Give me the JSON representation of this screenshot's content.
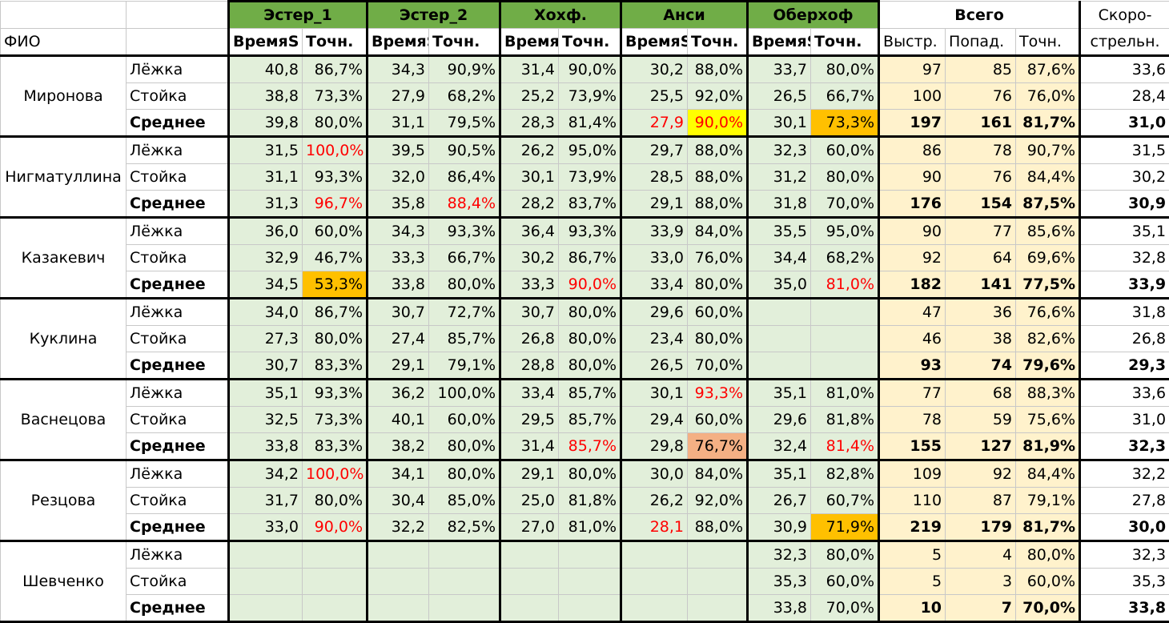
{
  "header": {
    "groups": [
      "Эстер_1",
      "Эстер_2",
      "Хохф.",
      "Анси",
      "Оберхоф"
    ],
    "total_group": "Всего",
    "rate_top": "Скоро-",
    "rate_bottom": "стрельн.",
    "fio": "ФИО",
    "time_label": "ВремяS",
    "acc_label": "Точн.",
    "fast_label": "Выстр.",
    "hits_label": "Попад.",
    "total_acc_label": "Точн."
  },
  "people": [
    {
      "name": "Миронова",
      "rows": [
        {
          "label": "Лёжка",
          "cells": [
            [
              "40,8",
              "86,7%"
            ],
            [
              "34,3",
              "90,9%"
            ],
            [
              "31,4",
              "90,0%"
            ],
            [
              "30,2",
              "88,0%"
            ],
            [
              "33,7",
              "80,0%"
            ]
          ],
          "total": [
            "97",
            "85",
            "87,6%"
          ],
          "rate": "33,6"
        },
        {
          "label": "Стойка",
          "cells": [
            [
              "38,8",
              "73,3%"
            ],
            [
              "27,9",
              "68,2%"
            ],
            [
              "25,2",
              "73,9%"
            ],
            [
              "25,5",
              "92,0%"
            ],
            [
              "26,5",
              "66,7%"
            ]
          ],
          "total": [
            "100",
            "76",
            "76,0%"
          ],
          "rate": "28,4"
        },
        {
          "label": "Среднее",
          "cells": [
            [
              "39,8",
              "80,0%"
            ],
            [
              "31,1",
              "79,5%"
            ],
            [
              "28,3",
              "81,4%"
            ],
            [
              "27,9",
              "90,0%"
            ],
            [
              "30,1",
              "73,3%"
            ]
          ],
          "total": [
            "197",
            "161",
            "81,7%"
          ],
          "rate": "31,0"
        }
      ]
    },
    {
      "name": "Нигматуллина",
      "rows": [
        {
          "label": "Лёжка",
          "cells": [
            [
              "31,5",
              "100,0%"
            ],
            [
              "39,5",
              "90,5%"
            ],
            [
              "26,2",
              "95,0%"
            ],
            [
              "29,7",
              "88,0%"
            ],
            [
              "32,3",
              "60,0%"
            ]
          ],
          "total": [
            "86",
            "78",
            "90,7%"
          ],
          "rate": "31,5"
        },
        {
          "label": "Стойка",
          "cells": [
            [
              "31,1",
              "93,3%"
            ],
            [
              "32,0",
              "86,4%"
            ],
            [
              "30,1",
              "73,9%"
            ],
            [
              "28,5",
              "88,0%"
            ],
            [
              "31,2",
              "80,0%"
            ]
          ],
          "total": [
            "90",
            "76",
            "84,4%"
          ],
          "rate": "30,2"
        },
        {
          "label": "Среднее",
          "cells": [
            [
              "31,3",
              "96,7%"
            ],
            [
              "35,8",
              "88,4%"
            ],
            [
              "28,2",
              "83,7%"
            ],
            [
              "29,1",
              "88,0%"
            ],
            [
              "31,8",
              "70,0%"
            ]
          ],
          "total": [
            "176",
            "154",
            "87,5%"
          ],
          "rate": "30,9"
        }
      ]
    },
    {
      "name": "Казакевич",
      "rows": [
        {
          "label": "Лёжка",
          "cells": [
            [
              "36,0",
              "60,0%"
            ],
            [
              "34,3",
              "93,3%"
            ],
            [
              "36,4",
              "93,3%"
            ],
            [
              "33,9",
              "84,0%"
            ],
            [
              "35,5",
              "95,0%"
            ]
          ],
          "total": [
            "90",
            "77",
            "85,6%"
          ],
          "rate": "35,1"
        },
        {
          "label": "Стойка",
          "cells": [
            [
              "32,9",
              "46,7%"
            ],
            [
              "33,3",
              "66,7%"
            ],
            [
              "30,2",
              "86,7%"
            ],
            [
              "33,0",
              "76,0%"
            ],
            [
              "34,4",
              "68,2%"
            ]
          ],
          "total": [
            "92",
            "64",
            "69,6%"
          ],
          "rate": "32,8"
        },
        {
          "label": "Среднее",
          "cells": [
            [
              "34,5",
              "53,3%"
            ],
            [
              "33,8",
              "80,0%"
            ],
            [
              "33,3",
              "90,0%"
            ],
            [
              "33,4",
              "80,0%"
            ],
            [
              "35,0",
              "81,0%"
            ]
          ],
          "total": [
            "182",
            "141",
            "77,5%"
          ],
          "rate": "33,9"
        }
      ]
    },
    {
      "name": "Куклина",
      "rows": [
        {
          "label": "Лёжка",
          "cells": [
            [
              "34,0",
              "86,7%"
            ],
            [
              "30,7",
              "72,7%"
            ],
            [
              "30,7",
              "80,0%"
            ],
            [
              "29,6",
              "60,0%"
            ],
            [
              "",
              ""
            ]
          ],
          "total": [
            "47",
            "36",
            "76,6%"
          ],
          "rate": "31,8"
        },
        {
          "label": "Стойка",
          "cells": [
            [
              "27,3",
              "80,0%"
            ],
            [
              "27,4",
              "85,7%"
            ],
            [
              "26,8",
              "80,0%"
            ],
            [
              "23,4",
              "80,0%"
            ],
            [
              "",
              ""
            ]
          ],
          "total": [
            "46",
            "38",
            "82,6%"
          ],
          "rate": "26,8"
        },
        {
          "label": "Среднее",
          "cells": [
            [
              "30,7",
              "83,3%"
            ],
            [
              "29,1",
              "79,1%"
            ],
            [
              "28,8",
              "80,0%"
            ],
            [
              "26,5",
              "70,0%"
            ],
            [
              "",
              ""
            ]
          ],
          "total": [
            "93",
            "74",
            "79,6%"
          ],
          "rate": "29,3"
        }
      ]
    },
    {
      "name": "Васнецова",
      "rows": [
        {
          "label": "Лёжка",
          "cells": [
            [
              "35,1",
              "93,3%"
            ],
            [
              "36,2",
              "100,0%"
            ],
            [
              "33,4",
              "85,7%"
            ],
            [
              "30,1",
              "93,3%"
            ],
            [
              "35,1",
              "81,0%"
            ]
          ],
          "total": [
            "77",
            "68",
            "88,3%"
          ],
          "rate": "33,6"
        },
        {
          "label": "Стойка",
          "cells": [
            [
              "32,5",
              "73,3%"
            ],
            [
              "40,1",
              "60,0%"
            ],
            [
              "29,5",
              "85,7%"
            ],
            [
              "29,4",
              "60,0%"
            ],
            [
              "29,6",
              "81,8%"
            ]
          ],
          "total": [
            "78",
            "59",
            "75,6%"
          ],
          "rate": "31,0"
        },
        {
          "label": "Среднее",
          "cells": [
            [
              "33,8",
              "83,3%"
            ],
            [
              "38,2",
              "80,0%"
            ],
            [
              "31,4",
              "85,7%"
            ],
            [
              "29,8",
              "76,7%"
            ],
            [
              "32,4",
              "81,4%"
            ]
          ],
          "total": [
            "155",
            "127",
            "81,9%"
          ],
          "rate": "32,3"
        }
      ]
    },
    {
      "name": "Резцова",
      "rows": [
        {
          "label": "Лёжка",
          "cells": [
            [
              "34,2",
              "100,0%"
            ],
            [
              "34,1",
              "80,0%"
            ],
            [
              "29,1",
              "80,0%"
            ],
            [
              "30,0",
              "84,0%"
            ],
            [
              "35,1",
              "82,8%"
            ]
          ],
          "total": [
            "109",
            "92",
            "84,4%"
          ],
          "rate": "32,2"
        },
        {
          "label": "Стойка",
          "cells": [
            [
              "31,7",
              "80,0%"
            ],
            [
              "30,4",
              "85,0%"
            ],
            [
              "25,0",
              "81,8%"
            ],
            [
              "26,2",
              "92,0%"
            ],
            [
              "26,7",
              "60,7%"
            ]
          ],
          "total": [
            "110",
            "87",
            "79,1%"
          ],
          "rate": "27,8"
        },
        {
          "label": "Среднее",
          "cells": [
            [
              "33,0",
              "90,0%"
            ],
            [
              "32,2",
              "82,5%"
            ],
            [
              "27,0",
              "81,0%"
            ],
            [
              "28,1",
              "88,0%"
            ],
            [
              "30,9",
              "71,9%"
            ]
          ],
          "total": [
            "219",
            "179",
            "81,7%"
          ],
          "rate": "30,0"
        }
      ]
    },
    {
      "name": "Шевченко",
      "rows": [
        {
          "label": "Лёжка",
          "cells": [
            [
              "",
              ""
            ],
            [
              "",
              ""
            ],
            [
              "",
              ""
            ],
            [
              "",
              ""
            ],
            [
              "32,3",
              "80,0%"
            ]
          ],
          "total": [
            "5",
            "4",
            "80,0%"
          ],
          "rate": "32,3"
        },
        {
          "label": "Стойка",
          "cells": [
            [
              "",
              ""
            ],
            [
              "",
              ""
            ],
            [
              "",
              ""
            ],
            [
              "",
              ""
            ],
            [
              "35,3",
              "60,0%"
            ]
          ],
          "total": [
            "5",
            "3",
            "60,0%"
          ],
          "rate": "35,3"
        },
        {
          "label": "Среднее",
          "cells": [
            [
              "",
              ""
            ],
            [
              "",
              ""
            ],
            [
              "",
              ""
            ],
            [
              "",
              ""
            ],
            [
              "33,8",
              "70,0%"
            ]
          ],
          "total": [
            "10",
            "7",
            "70,0%"
          ],
          "rate": "33,8"
        }
      ]
    }
  ],
  "styles": {
    "red_text": [
      "0-2-3-0",
      "0-2-3-1",
      "1-0-0-1",
      "1-2-0-1",
      "1-2-1-1",
      "2-2-2-1",
      "2-2-4-1",
      "4-0-3-1",
      "4-2-2-1",
      "4-2-4-1",
      "5-0-0-1",
      "5-2-0-1",
      "5-2-3-0"
    ],
    "yellow_fill": [
      "0-2-3-1"
    ],
    "orange_fill": [
      "0-2-4-1",
      "2-2-0-1",
      "5-2-4-1"
    ],
    "salmon_fill": [
      "4-2-3-1"
    ]
  }
}
